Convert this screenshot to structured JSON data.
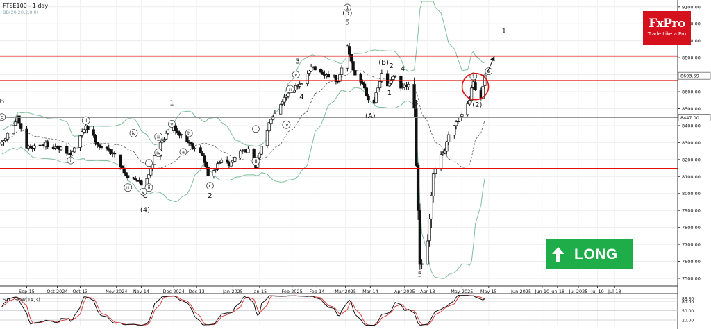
{
  "chart_data": {
    "type": "candlestick",
    "title": "FTSE100 - 1 day",
    "indicator_label": "BB(20,20,2,0,0)",
    "y_ticks": [
      7500,
      7600,
      7700,
      7800,
      7900,
      8000,
      8100,
      8200,
      8300,
      8400,
      8500,
      8600,
      8700,
      8800,
      8900,
      9000,
      9100
    ],
    "y_ticks_text": [
      "7500.00",
      "7600.00",
      "7700.00",
      "7800.00",
      "7900.00",
      "8000.00",
      "8100.00",
      "8200.00",
      "8300.00",
      "8400.00",
      "8500.00",
      "8600.00",
      "8700.00",
      "8800.00",
      "8900.00",
      "9000.00",
      "9100.00"
    ],
    "ylim": [
      7455,
      9140
    ],
    "price_tag": "8693.59",
    "price_tag_value": 8693.59,
    "level_tag": "8447.00",
    "level_tag_value": 8447,
    "resistance_levels": [
      8810,
      8665,
      8147
    ],
    "x_ticks": [
      "Sep-15",
      "Oct-2024",
      "Oct-13",
      "Nov-2024",
      "Nov-14",
      "Dec-2024",
      "Dec-13",
      "Jan-2025",
      "Jan-15",
      "Feb-2025",
      "Feb-14",
      "Mar-2025",
      "Mar-14",
      "Apr-2025",
      "Apr-13",
      "May-2025",
      "May-15",
      "Jun-2025",
      "Jun-10",
      "Jun-18",
      "Jul-2025",
      "Jul-10",
      "Jul-18"
    ],
    "x_tick_days": [
      0,
      16,
      28,
      47,
      60,
      77,
      89,
      108,
      122,
      139,
      152,
      167,
      180,
      198,
      210,
      228,
      242,
      259,
      270,
      278,
      289,
      299,
      308
    ],
    "x_range_days": [
      -14,
      341
    ],
    "candles_start": -13,
    "candles_end": 240,
    "anchors": [
      [
        -13,
        8290
      ],
      [
        -5,
        8440
      ],
      [
        0,
        8270
      ],
      [
        10,
        8290
      ],
      [
        18,
        8260
      ],
      [
        23,
        8225
      ],
      [
        31,
        8400
      ],
      [
        38,
        8280
      ],
      [
        45,
        8240
      ],
      [
        49,
        8170
      ],
      [
        53,
        8090
      ],
      [
        56,
        8100
      ],
      [
        61,
        8040
      ],
      [
        64,
        8120
      ],
      [
        69,
        8280
      ],
      [
        76,
        8400
      ],
      [
        82,
        8330
      ],
      [
        88,
        8270
      ],
      [
        91,
        8250
      ],
      [
        96,
        8080
      ],
      [
        101,
        8190
      ],
      [
        106,
        8170
      ],
      [
        112,
        8250
      ],
      [
        116,
        8260
      ],
      [
        120,
        8160
      ],
      [
        124,
        8300
      ],
      [
        128,
        8450
      ],
      [
        134,
        8550
      ],
      [
        138,
        8610
      ],
      [
        144,
        8640
      ],
      [
        149,
        8755
      ],
      [
        155,
        8690
      ],
      [
        160,
        8700
      ],
      [
        163,
        8650
      ],
      [
        168,
        8870
      ],
      [
        172,
        8690
      ],
      [
        176,
        8650
      ],
      [
        181,
        8500
      ],
      [
        186,
        8700
      ],
      [
        189,
        8630
      ],
      [
        192,
        8700
      ],
      [
        196,
        8620
      ],
      [
        200,
        8630
      ],
      [
        203,
        8470
      ],
      [
        206,
        7570
      ],
      [
        210,
        7700
      ],
      [
        213,
        8090
      ],
      [
        216,
        8230
      ],
      [
        219,
        8250
      ],
      [
        222,
        8400
      ],
      [
        226,
        8430
      ],
      [
        229,
        8500
      ],
      [
        232,
        8560
      ],
      [
        234,
        8660
      ],
      [
        236,
        8540
      ],
      [
        238,
        8550
      ],
      [
        240,
        8693
      ]
    ],
    "wave_labels": [
      {
        "t": "B",
        "d": -13,
        "v": 8530
      },
      {
        "t": "1",
        "d": 76,
        "v": 8520
      },
      {
        "t": "5",
        "d": 168,
        "v": 8995
      },
      {
        "t": "3",
        "d": 142,
        "v": 8765
      },
      {
        "t": "4",
        "d": 144,
        "v": 8555
      },
      {
        "t": "(B)",
        "d": 187,
        "v": 8760
      },
      {
        "t": "2",
        "d": 191,
        "v": 8740
      },
      {
        "t": "4",
        "d": 197,
        "v": 8720
      },
      {
        "t": "1",
        "d": 190,
        "v": 8580
      },
      {
        "t": "3",
        "d": 204,
        "v": 8520
      },
      {
        "t": "(A)",
        "d": 180,
        "v": 8445
      },
      {
        "t": "C",
        "d": 62,
        "v": 7975
      },
      {
        "t": "(4)",
        "d": 62,
        "v": 7890
      },
      {
        "t": "2",
        "d": 96,
        "v": 7975
      },
      {
        "t": "5",
        "d": 206,
        "v": 7510
      },
      {
        "t": "(2)",
        "d": 236,
        "v": 8510
      },
      {
        "t": "1",
        "d": 250,
        "v": 8945
      },
      {
        "t": "(5)",
        "d": 168,
        "v": 9050
      }
    ],
    "circled_labels": [
      {
        "t": "1",
        "d": 168,
        "v": 9095
      },
      {
        "t": "1",
        "d": 234,
        "v": 8690
      },
      {
        "t": "i",
        "d": 23,
        "v": 8195
      },
      {
        "t": "ii",
        "d": 31,
        "v": 8430
      },
      {
        "t": "iii",
        "d": 53,
        "v": 8035
      },
      {
        "t": "iv",
        "d": 56,
        "v": 8355
      },
      {
        "t": "v",
        "d": 61,
        "v": 8010
      },
      {
        "t": "i",
        "d": 64,
        "v": 8180
      },
      {
        "t": "ii",
        "d": 64,
        "v": 8035
      },
      {
        "t": "iii",
        "d": 69,
        "v": 8335
      },
      {
        "t": "iv",
        "d": 69,
        "v": 8240
      },
      {
        "t": "v",
        "d": 76,
        "v": 8410
      },
      {
        "t": "a",
        "d": 82,
        "v": 8245
      },
      {
        "t": "b",
        "d": 85,
        "v": 8355
      },
      {
        "t": "c",
        "d": 96,
        "v": 8045
      },
      {
        "t": "i",
        "d": 120,
        "v": 8380
      },
      {
        "t": "ii",
        "d": 120,
        "v": 8190
      },
      {
        "t": "iii",
        "d": 138,
        "v": 8615
      },
      {
        "t": "iv",
        "d": 136,
        "v": 8405
      },
      {
        "t": "v",
        "d": 141,
        "v": 8700
      },
      {
        "t": "v",
        "d": 242,
        "v": 8720
      },
      {
        "t": "c",
        "d": -13,
        "v": 8450
      }
    ],
    "target_circle": {
      "d": 235,
      "v": 8630
    },
    "target_arrow": {
      "from_d": 241,
      "from_v": 8705,
      "to_d": 245,
      "to_v": 8810
    },
    "stochastic": {
      "label": "STO Slow(14,3)",
      "levels_text": [
        "88.80",
        "80.00",
        "50.00",
        "20.00"
      ],
      "levels": [
        88.8,
        80,
        50,
        20
      ]
    }
  },
  "branding": {
    "name": "FxPro",
    "tagline": "Trade Like a Pro"
  },
  "signal": {
    "label": "LONG"
  },
  "colors": {
    "bull": "#1c8a2a",
    "bear": "#111111",
    "level": "#e01010",
    "bb": "#7fbf9f",
    "stoch_k": "#111111",
    "stoch_d": "#d93b3b"
  }
}
